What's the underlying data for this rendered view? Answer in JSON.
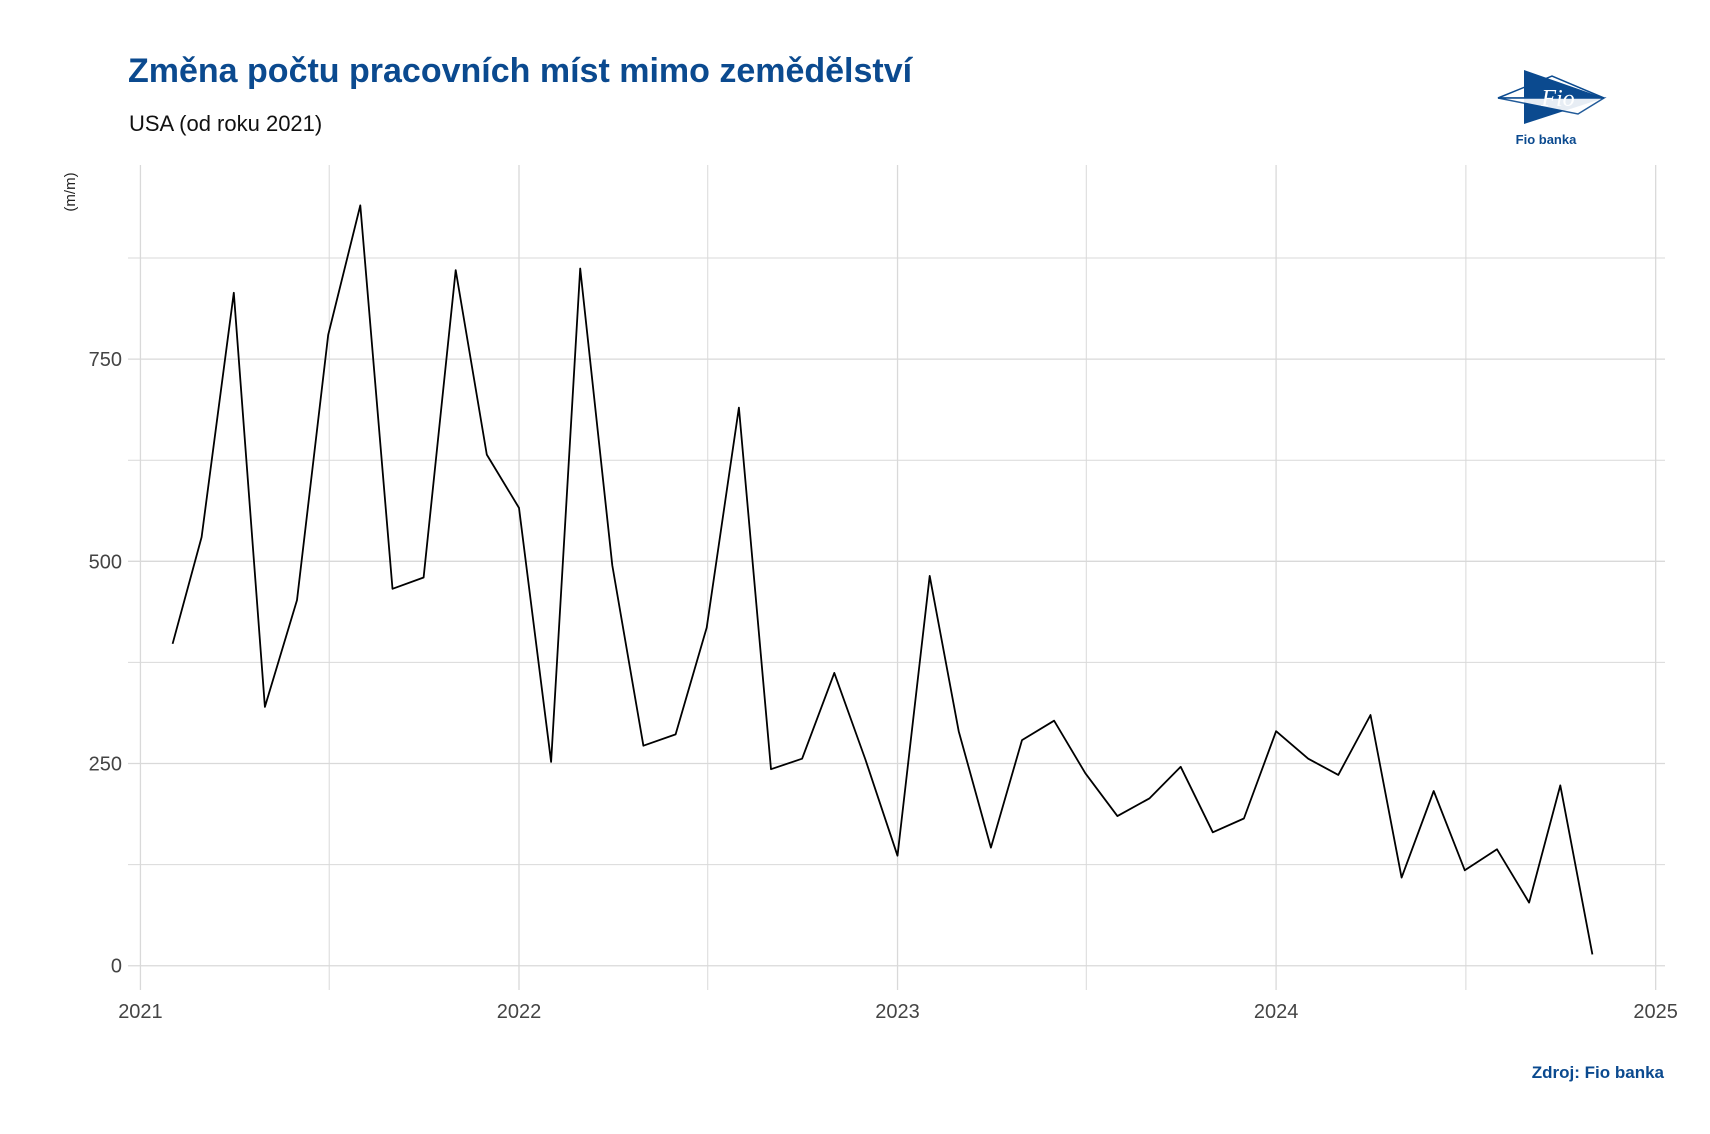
{
  "header": {
    "title": "Změna počtu pracovních míst mimo zemědělství",
    "subtitle": "USA (od roku 2021)"
  },
  "logo": {
    "mark_text": "Fio",
    "name": "Fio banka",
    "color": "#0b4a8f"
  },
  "footer": {
    "source": "Zdroj: Fio banka"
  },
  "chart_data": {
    "type": "line",
    "title": "Změna počtu pracovních míst mimo zemědělství",
    "subtitle": "USA (od roku 2021)",
    "xlabel": "",
    "ylabel": "(m/m)",
    "x_ticks": [
      "2021",
      "2022",
      "2023",
      "2024",
      "2025"
    ],
    "y_ticks": [
      0,
      250,
      500,
      750
    ],
    "ylim": [
      -30,
      990
    ],
    "xlim": [
      "2020-12-20",
      "2025-01-10"
    ],
    "grid": true,
    "legend": "none",
    "line_color": "#000000",
    "series": [
      {
        "x": [
          "2021-02-01",
          "2021-03-01",
          "2021-04-01",
          "2021-05-01",
          "2021-06-01",
          "2021-07-01",
          "2021-08-01",
          "2021-09-01",
          "2021-10-01",
          "2021-11-01",
          "2021-12-01",
          "2022-01-01",
          "2022-02-01",
          "2022-03-01",
          "2022-04-01",
          "2022-05-01",
          "2022-06-01",
          "2022-07-01",
          "2022-08-01",
          "2022-09-01",
          "2022-10-01",
          "2022-11-01",
          "2022-12-01",
          "2023-01-01",
          "2023-02-01",
          "2023-03-01",
          "2023-04-01",
          "2023-05-01",
          "2023-06-01",
          "2023-07-01",
          "2023-08-01",
          "2023-09-01",
          "2023-10-01",
          "2023-11-01",
          "2023-12-01",
          "2024-01-01",
          "2024-02-01",
          "2024-03-01",
          "2024-04-01",
          "2024-05-01",
          "2024-06-01",
          "2024-07-01",
          "2024-08-01",
          "2024-09-01",
          "2024-10-01",
          "2024-11-01"
        ],
        "values": [
          398,
          530,
          832,
          320,
          452,
          780,
          940,
          466,
          480,
          860,
          632,
          566,
          252,
          862,
          495,
          272,
          286,
          418,
          690,
          243,
          256,
          362,
          255,
          136,
          482,
          290,
          146,
          279,
          303,
          238,
          185,
          207,
          246,
          165,
          182,
          290,
          256,
          236,
          310,
          109,
          216,
          118,
          144,
          78,
          223,
          14
        ]
      }
    ]
  }
}
